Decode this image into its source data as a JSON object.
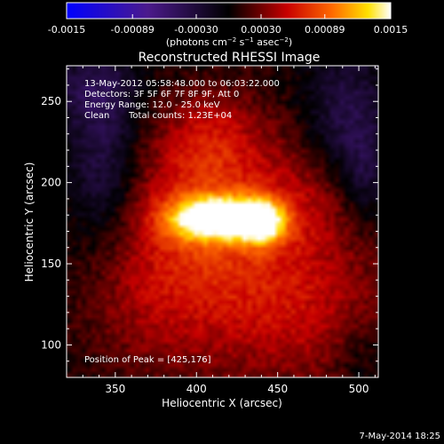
{
  "chart_data": {
    "type": "heatmap",
    "title": "Reconstructed RHESSI Image",
    "xlabel": "Heliocentric X (arcsec)",
    "ylabel": "Heliocentric Y (arcsec)",
    "xlim": [
      320,
      512
    ],
    "ylim": [
      80,
      272
    ],
    "x_ticks": [
      350,
      400,
      450,
      500
    ],
    "y_ticks": [
      100,
      150,
      200,
      250
    ],
    "colorbar": {
      "min": -0.0015,
      "max": 0.0015,
      "ticks": [
        -0.0015,
        -0.00089,
        -0.0003,
        0.0003,
        0.00089,
        0.0015
      ],
      "tick_labels": [
        "-0.0015",
        "-0.00089",
        "-0.00030",
        "0.00030",
        "0.00089",
        "0.0015"
      ],
      "unit_label": "(photons cm-2 s-1 asec-2)",
      "colormap": "blue-purple-black-red-yellow-white"
    },
    "annotations": {
      "time_range": "13-May-2012 05:58:48.000 to 06:03:22.000",
      "detectors": "Detectors: 3F 5F 6F 7F 8F 9F, Att 0",
      "energy_range": "Energy Range: 12.0 - 25.0 keV",
      "method": "Clean",
      "total_counts": "Total counts: 1.23E+04",
      "peak": "Position of Peak = [425,176]"
    },
    "peak": {
      "x": 425,
      "y": 176
    },
    "sources": [
      {
        "x": 412,
        "y": 178,
        "sx": 20,
        "sy": 9,
        "amp": 0.00135
      },
      {
        "x": 440,
        "y": 176,
        "sx": 10,
        "sy": 9,
        "amp": 0.0011
      },
      {
        "x": 410,
        "y": 182,
        "sx": 40,
        "sy": 34,
        "amp": 0.00052
      },
      {
        "x": 408,
        "y": 230,
        "sx": 22,
        "sy": 20,
        "amp": 0.00033
      },
      {
        "x": 462,
        "y": 118,
        "sx": 45,
        "sy": 30,
        "amp": 0.00034
      },
      {
        "x": 370,
        "y": 125,
        "sx": 32,
        "sy": 32,
        "amp": 0.00024
      },
      {
        "x": 475,
        "y": 190,
        "sx": 20,
        "sy": 26,
        "amp": 0.0002
      },
      {
        "x": 430,
        "y": 150,
        "sx": 60,
        "sy": 60,
        "amp": 0.00018
      }
    ],
    "negative_regions": [
      {
        "x": 342,
        "y": 212,
        "sx": 16,
        "sy": 38,
        "amp": -0.00045
      },
      {
        "x": 337,
        "y": 258,
        "sx": 20,
        "sy": 15,
        "amp": -0.00032
      },
      {
        "x": 492,
        "y": 238,
        "sx": 18,
        "sy": 32,
        "amp": -0.00045
      },
      {
        "x": 505,
        "y": 205,
        "sx": 10,
        "sy": 20,
        "amp": -0.00028
      },
      {
        "x": 502,
        "y": 95,
        "sx": 12,
        "sy": 18,
        "amp": -0.0002
      }
    ]
  },
  "footer": {
    "date": "7-May-2014 18:25"
  }
}
